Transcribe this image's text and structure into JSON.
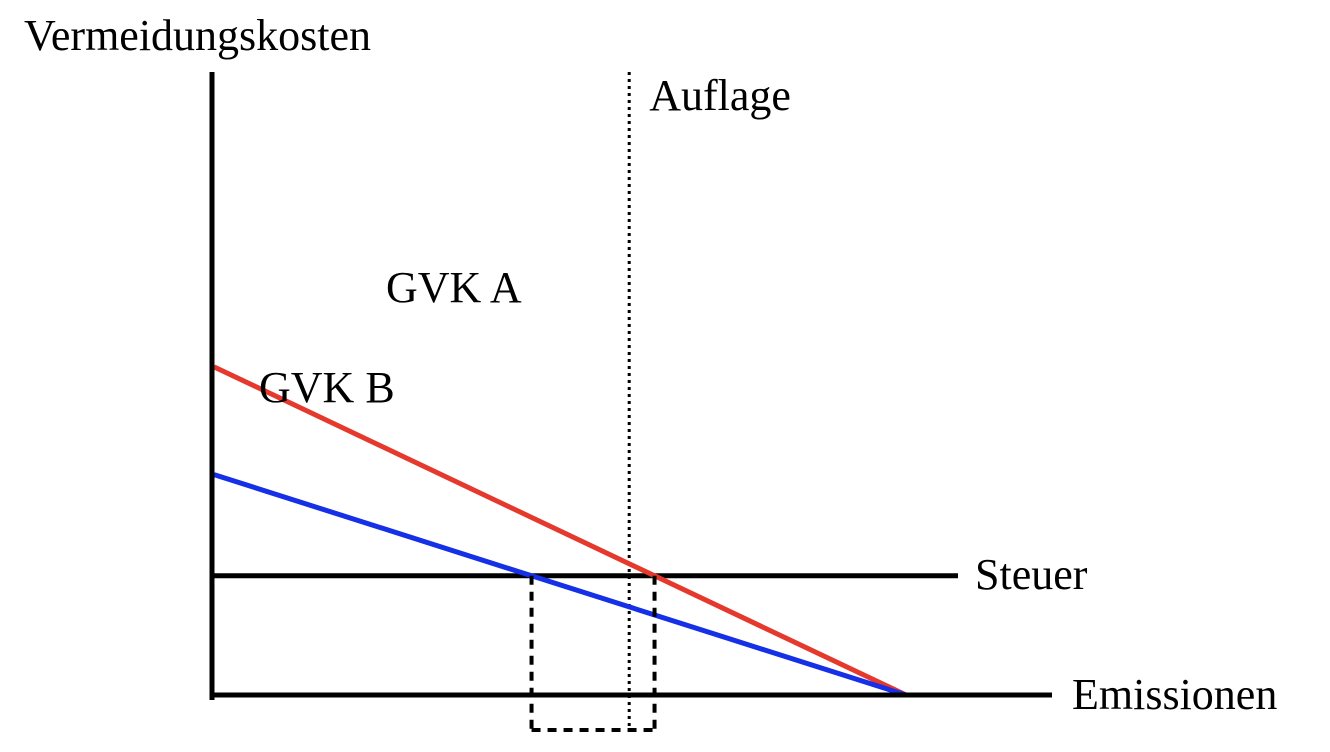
{
  "colors": {
    "axis": "#000000",
    "gvk_a": "#e5392d",
    "gvk_b": "#1530e6",
    "guides": "#000000"
  },
  "chart_data": {
    "type": "line",
    "ylabel": "Vermeidungskosten",
    "xlabel": "Emissionen",
    "xlim": [
      0,
      10
    ],
    "ylim": [
      0,
      10
    ],
    "series": [
      {
        "name": "GVK A",
        "label": "GVK A",
        "color": "#e5392d",
        "points": [
          [
            0,
            6.88
          ],
          [
            10,
            0
          ]
        ]
      },
      {
        "name": "GVK B",
        "label": "GVK B",
        "color": "#1530e6",
        "points": [
          [
            0,
            4.62
          ],
          [
            10,
            0
          ]
        ]
      }
    ],
    "steuer": {
      "label": "Steuer",
      "value": 2.5
    },
    "auflage": {
      "label": "Auflage",
      "value": 6.0
    }
  }
}
